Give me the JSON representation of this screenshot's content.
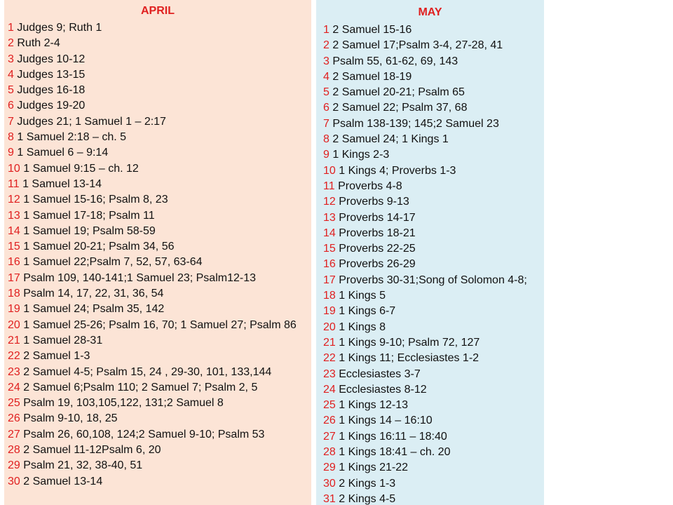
{
  "april": {
    "title": "APRIL",
    "entries": [
      {
        "day": "1",
        "reading": "Judges 9; Ruth 1"
      },
      {
        "day": "2",
        "reading": "Ruth 2-4"
      },
      {
        "day": "3",
        "reading": "Judges 10-12"
      },
      {
        "day": "4",
        "reading": "Judges 13-15"
      },
      {
        "day": "5",
        "reading": "Judges 16-18"
      },
      {
        "day": "6",
        "reading": "Judges 19-20"
      },
      {
        "day": "7",
        "reading": "Judges 21; 1 Samuel 1 – 2:17"
      },
      {
        "day": "8",
        "reading": "1 Samuel 2:18 – ch. 5"
      },
      {
        "day": "9",
        "reading": "1 Samuel 6 – 9:14"
      },
      {
        "day": "10",
        "reading": "1 Samuel 9:15 – ch. 12"
      },
      {
        "day": "11",
        "reading": "1 Samuel 13-14"
      },
      {
        "day": "12",
        "reading": "1 Samuel 15-16; Psalm 8, 23"
      },
      {
        "day": "13",
        "reading": "1 Samuel 17-18; Psalm 11"
      },
      {
        "day": "14",
        "reading": "1 Samuel 19; Psalm 58-59"
      },
      {
        "day": "15",
        "reading": "1 Samuel 20-21; Psalm 34, 56"
      },
      {
        "day": "16",
        "reading": "1 Samuel 22;Psalm 7, 52, 57, 63-64"
      },
      {
        "day": "17",
        "reading": "Psalm 109, 140-141;1 Samuel 23; Psalm12-13"
      },
      {
        "day": "18",
        "reading": "Psalm 14, 17, 22, 31, 36, 54"
      },
      {
        "day": "19",
        "reading": "1 Samuel 24; Psalm 35, 142"
      },
      {
        "day": "20",
        "reading": "1 Samuel 25-26; Psalm 16, 70; 1 Samuel 27; Psalm 86"
      },
      {
        "day": "21",
        "reading": "1 Samuel 28-31"
      },
      {
        "day": "22",
        "reading": "2 Samuel 1-3"
      },
      {
        "day": "23",
        "reading": "2 Samuel 4-5; Psalm 15, 24 , 29-30, 101, 133,144"
      },
      {
        "day": "24",
        "reading": "2 Samuel 6;Psalm 110; 2 Samuel 7;  Psalm 2, 5"
      },
      {
        "day": "25",
        "reading": "Psalm 19, 103,105,122, 131;2 Samuel 8"
      },
      {
        "day": "26",
        "reading": "Psalm 9-10, 18, 25"
      },
      {
        "day": "27",
        "reading": "Psalm 26, 60,108, 124;2 Samuel 9-10; Psalm 53"
      },
      {
        "day": "28",
        "reading": "2 Samuel 11-12Psalm 6, 20"
      },
      {
        "day": "29",
        "reading": "Psalm 21, 32, 38-40, 51"
      },
      {
        "day": "30",
        "reading": "2 Samuel 13-14"
      }
    ]
  },
  "may": {
    "title": "MAY",
    "entries": [
      {
        "day": "1",
        "reading": "2 Samuel 15-16"
      },
      {
        "day": "2",
        "reading": "2 Samuel 17;Psalm 3-4, 27-28, 41"
      },
      {
        "day": "3",
        "reading": "Psalm 55, 61-62, 69, 143"
      },
      {
        "day": "4",
        "reading": "2 Samuel 18-19"
      },
      {
        "day": "5",
        "reading": "2 Samuel 20-21; Psalm 65"
      },
      {
        "day": "6",
        "reading": "2 Samuel 22; Psalm 37, 68"
      },
      {
        "day": "7",
        "reading": "Psalm 138-139; 145;2 Samuel 23"
      },
      {
        "day": "8",
        "reading": "2 Samuel 24; 1 Kings 1"
      },
      {
        "day": "9",
        "reading": "1 Kings 2-3"
      },
      {
        "day": "10",
        "reading": "1 Kings 4; Proverbs 1-3"
      },
      {
        "day": "11",
        "reading": "Proverbs 4-8"
      },
      {
        "day": "12",
        "reading": "Proverbs 9-13"
      },
      {
        "day": "13",
        "reading": "Proverbs 14-17"
      },
      {
        "day": "14",
        "reading": "Proverbs 18-21"
      },
      {
        "day": "15",
        "reading": "Proverbs 22-25"
      },
      {
        "day": "16",
        "reading": "Proverbs 26-29"
      },
      {
        "day": "17",
        "reading": "Proverbs 30-31;Song of Solomon 4-8;"
      },
      {
        "day": "18",
        "reading": "1 Kings 5"
      },
      {
        "day": "19",
        "reading": "1 Kings 6-7"
      },
      {
        "day": "20",
        "reading": "1 Kings 8"
      },
      {
        "day": "21",
        "reading": "1 Kings 9-10; Psalm 72, 127"
      },
      {
        "day": "22",
        "reading": "1 Kings 11; Ecclesiastes 1-2"
      },
      {
        "day": "23",
        "reading": "Ecclesiastes 3-7"
      },
      {
        "day": "24",
        "reading": "Ecclesiastes 8-12"
      },
      {
        "day": "25",
        "reading": "1 Kings 12-13"
      },
      {
        "day": "26",
        "reading": "1 Kings 14 – 16:10"
      },
      {
        "day": "27",
        "reading": "1 Kings 16:11 – 18:40"
      },
      {
        "day": "28",
        "reading": "1 Kings 18:41 – ch. 20"
      },
      {
        "day": "29",
        "reading": "1 Kings 21-22"
      },
      {
        "day": "30",
        "reading": "2 Kings 1-3"
      },
      {
        "day": "31",
        "reading": "2 Kings 4-5"
      }
    ]
  },
  "colors": {
    "april_background": "#fce4d6",
    "may_background": "#dbeef4",
    "accent_red": "#e02020"
  }
}
